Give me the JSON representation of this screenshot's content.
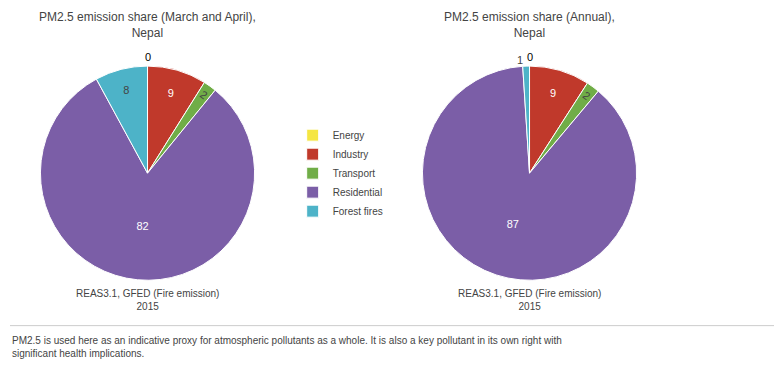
{
  "chart_data": [
    {
      "type": "pie",
      "title": "PM2.5 emission share (March and April),\nNepal",
      "categories": [
        "Energy",
        "Industry",
        "Transport",
        "Residential",
        "Forest fires"
      ],
      "values": [
        0,
        9,
        2,
        82,
        8
      ],
      "colors": [
        "#f5e642",
        "#c0392b",
        "#70ad47",
        "#7b5ea7",
        "#4db3c8"
      ],
      "data_labels": true,
      "legend": "right",
      "annotations": [
        "REAS3.1, GFED (Fire emission)\n2015",
        "PM2.5 is used here as an indicative proxy for atmospheric pollutants as a whole. It is also a key pollutant in its own right with\nsignificant health implications."
      ]
    },
    {
      "type": "pie",
      "title": "PM2.5 emission share (Annual),\nNepal",
      "categories": [
        "Energy",
        "Industry",
        "Transport",
        "Residential",
        "Forest fires"
      ],
      "values": [
        0,
        9,
        2,
        87,
        1
      ],
      "colors": [
        "#f5e642",
        "#c0392b",
        "#70ad47",
        "#7b5ea7",
        "#4db3c8"
      ],
      "data_labels": true,
      "legend": "right",
      "annotations": [
        "REAS3.1, GFED (Fire emission)\n2015"
      ]
    }
  ]
}
